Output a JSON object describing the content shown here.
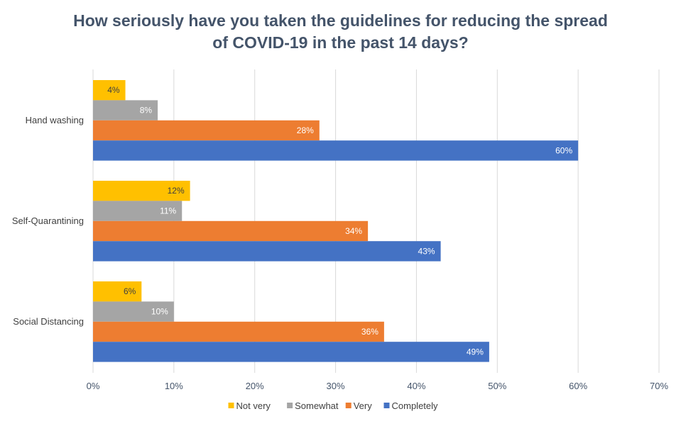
{
  "chart_data": {
    "type": "bar",
    "orientation": "horizontal",
    "title_lines": [
      "How seriously have you taken the guidelines for reducing the spread",
      "of COVID-19 in the past 14 days?"
    ],
    "categories": [
      "Hand washing",
      "Self-Quarantining",
      "Social Distancing"
    ],
    "series": [
      {
        "name": "Not very",
        "color": "#ffc000",
        "text_color": "#404040",
        "values": [
          4,
          12,
          6
        ]
      },
      {
        "name": "Somewhat",
        "color": "#a5a5a5",
        "text_color": "#ffffff",
        "values": [
          8,
          11,
          10
        ]
      },
      {
        "name": "Very",
        "color": "#ed7d31",
        "text_color": "#ffffff",
        "values": [
          28,
          34,
          36
        ]
      },
      {
        "name": "Completely",
        "color": "#4472c4",
        "text_color": "#ffffff",
        "values": [
          60,
          43,
          49
        ]
      }
    ],
    "value_suffix": "%",
    "xlim": [
      0,
      70
    ],
    "xticks": [
      0,
      10,
      20,
      30,
      40,
      50,
      60,
      70
    ],
    "xtick_labels": [
      "0%",
      "10%",
      "20%",
      "30%",
      "40%",
      "50%",
      "60%",
      "70%"
    ],
    "grid": true,
    "legend_position": "bottom"
  }
}
